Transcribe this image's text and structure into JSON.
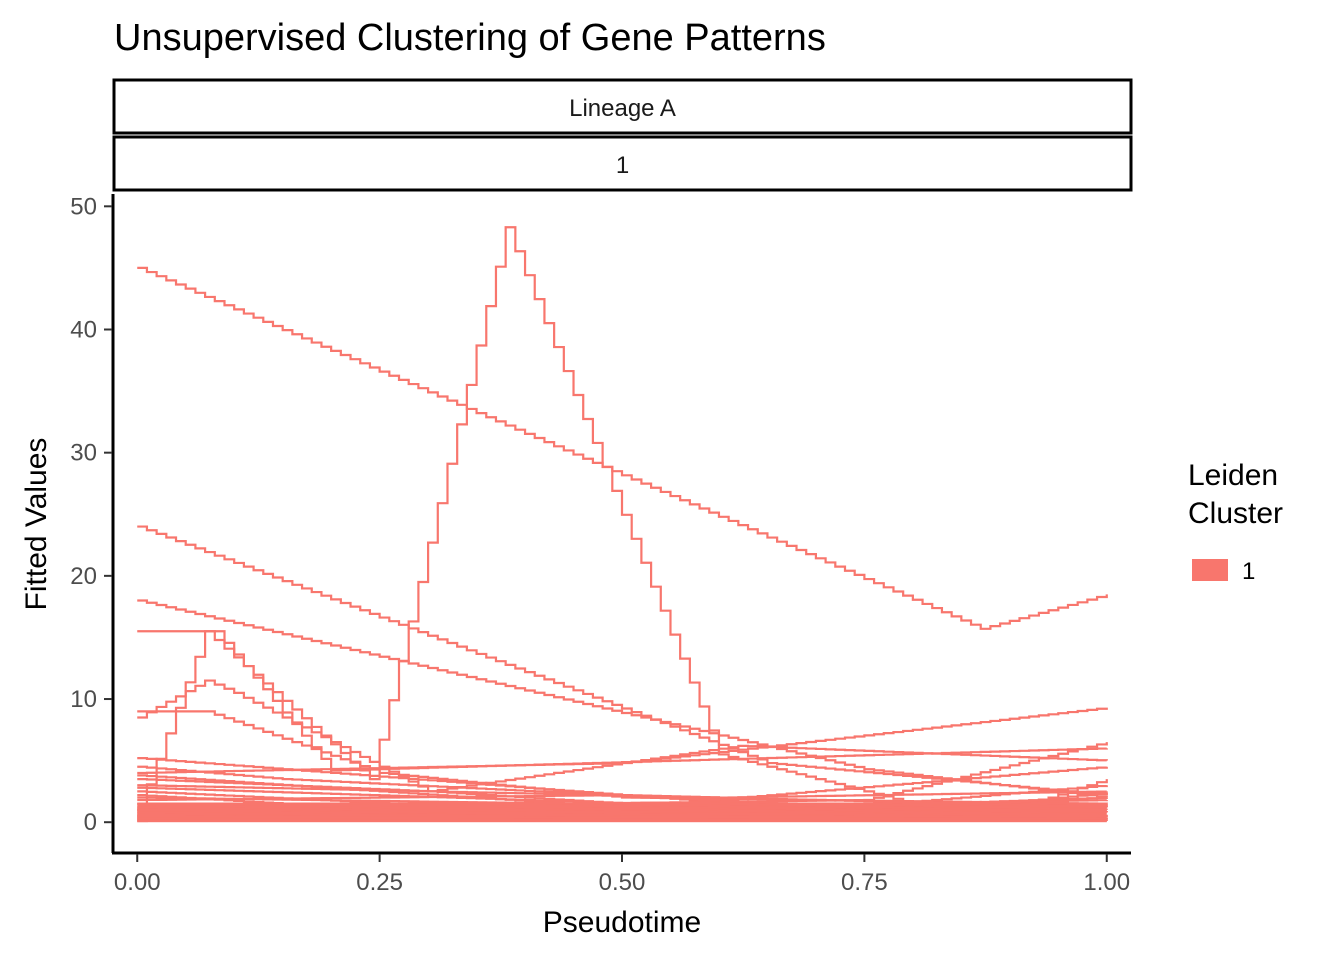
{
  "chart_data": {
    "type": "line",
    "title": "Unsupervised Clustering of Gene Patterns",
    "facets": [
      "Lineage A",
      "1"
    ],
    "xlabel": "Pseudotime",
    "ylabel": "Fitted Values",
    "xlim": [
      -0.025,
      1.025
    ],
    "ylim": [
      -2.5,
      51
    ],
    "x_ticks": [
      0,
      0.25,
      0.5,
      0.75,
      1
    ],
    "x_tick_labels": [
      "0.00",
      "0.25",
      "0.50",
      "0.75",
      "1.00"
    ],
    "y_ticks": [
      0,
      10,
      20,
      30,
      40,
      50
    ],
    "y_tick_labels": [
      "0",
      "10",
      "20",
      "30",
      "40",
      "50"
    ],
    "legend": {
      "title": [
        "Leiden",
        "Cluster"
      ],
      "entries": [
        "1"
      ],
      "position": "right"
    },
    "line_color": "#F8766D",
    "series": [
      {
        "x": [
          0,
          0.87,
          1
        ],
        "y": [
          45,
          15.7,
          18.5
        ]
      },
      {
        "x": [
          0,
          0.65,
          1
        ],
        "y": [
          24,
          4.8,
          2.2
        ]
      },
      {
        "x": [
          0,
          0.75,
          1
        ],
        "y": [
          18,
          4.3,
          2.0
        ]
      },
      {
        "x": [
          0,
          0.07,
          0.24,
          0.38,
          0.6,
          0.8,
          1
        ],
        "y": [
          1.0,
          15.5,
          3.5,
          48.3,
          5.5,
          1.5,
          1.2
        ]
      },
      {
        "x": [
          0,
          0.07,
          0.1,
          0.3,
          0.5,
          1
        ],
        "y": [
          8.5,
          11.5,
          10.5,
          2.5,
          1.5,
          1.0
        ]
      },
      {
        "x": [
          0,
          0.07,
          0.25,
          0.5,
          1
        ],
        "y": [
          9.0,
          9.0,
          4.0,
          2.0,
          1.5
        ]
      },
      {
        "x": [
          0,
          0.08,
          0.2,
          1
        ],
        "y": [
          15.5,
          15.5,
          4.2,
          6.0
        ]
      },
      {
        "x": [
          0,
          0.3,
          0.62,
          1
        ],
        "y": [
          3.5,
          2.5,
          6.2,
          5.0
        ]
      },
      {
        "x": [
          0,
          0.5,
          1
        ],
        "y": [
          4.0,
          4.8,
          9.3
        ]
      },
      {
        "x": [
          0,
          0.45,
          0.75,
          1
        ],
        "y": [
          2.0,
          1.5,
          1.8,
          6.5
        ]
      },
      {
        "x": [
          0,
          0.7,
          1
        ],
        "y": [
          5.2,
          1.0,
          3.0
        ]
      },
      {
        "x": [
          0,
          0.15,
          0.8,
          1
        ],
        "y": [
          4.5,
          3.5,
          1.0,
          1.5
        ]
      },
      {
        "x": [
          0,
          0.5,
          1
        ],
        "y": [
          3.8,
          1.2,
          4.5
        ]
      },
      {
        "x": [
          0,
          0.6,
          1
        ],
        "y": [
          3.0,
          2.0,
          2.5
        ]
      },
      {
        "x": [
          0,
          0.4,
          1
        ],
        "y": [
          2.5,
          1.0,
          1.8
        ]
      },
      {
        "x": [
          0,
          0.3,
          0.9,
          1
        ],
        "y": [
          2.2,
          0.8,
          1.0,
          3.5
        ]
      },
      {
        "x": [
          0,
          0.5,
          1
        ],
        "y": [
          1.8,
          2.2,
          1.2
        ]
      },
      {
        "x": [
          0,
          0.45,
          1
        ],
        "y": [
          1.5,
          0.5,
          2.0
        ]
      },
      {
        "x": [
          0,
          0.55,
          1
        ],
        "y": [
          1.2,
          1.6,
          0.8
        ]
      },
      {
        "x": [
          0,
          0.5,
          1
        ],
        "y": [
          1.0,
          0.6,
          1.4
        ]
      },
      {
        "x": [
          0,
          1
        ],
        "y": [
          0.8,
          0.9
        ]
      },
      {
        "x": [
          0,
          0.6,
          1
        ],
        "y": [
          0.6,
          1.2,
          0.5
        ]
      },
      {
        "x": [
          0,
          1
        ],
        "y": [
          0.5,
          0.3
        ]
      },
      {
        "x": [
          0,
          0.7,
          1
        ],
        "y": [
          0.4,
          0.7,
          0.2
        ]
      },
      {
        "x": [
          0,
          1
        ],
        "y": [
          0.3,
          0.5
        ]
      },
      {
        "x": [
          0,
          1
        ],
        "y": [
          0.2,
          0.1
        ]
      },
      {
        "x": [
          0,
          1
        ],
        "y": [
          0.1,
          0.3
        ]
      },
      {
        "x": [
          0,
          0.8,
          1
        ],
        "y": [
          2.8,
          0.8,
          2.4
        ]
      }
    ]
  }
}
